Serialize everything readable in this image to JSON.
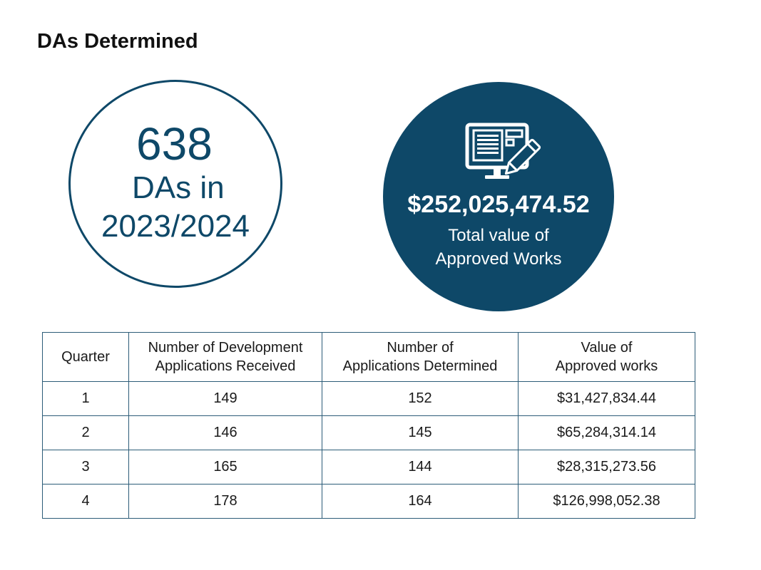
{
  "title": "DAs Determined",
  "stat": {
    "count": "638",
    "label_line1": "DAs in",
    "label_line2": "2023/2024"
  },
  "value_block": {
    "icon": "monitor-document-pencil-icon",
    "amount": "$252,025,474.52",
    "caption_line1": "Total value of",
    "caption_line2": "Approved Works"
  },
  "colors": {
    "accent": "#0e4868",
    "table_border": "#2c5c78"
  },
  "table": {
    "headers": [
      [
        "Quarter"
      ],
      [
        "Number of Development",
        "Applications Received"
      ],
      [
        "Number of",
        "Applications Determined"
      ],
      [
        "Value of",
        "Approved works"
      ]
    ],
    "rows": [
      [
        "1",
        "149",
        "152",
        "$31,427,834.44"
      ],
      [
        "2",
        "146",
        "145",
        "$65,284,314.14"
      ],
      [
        "3",
        "165",
        "144",
        "$28,315,273.56"
      ],
      [
        "4",
        "178",
        "164",
        "$126,998,052.38"
      ]
    ]
  }
}
